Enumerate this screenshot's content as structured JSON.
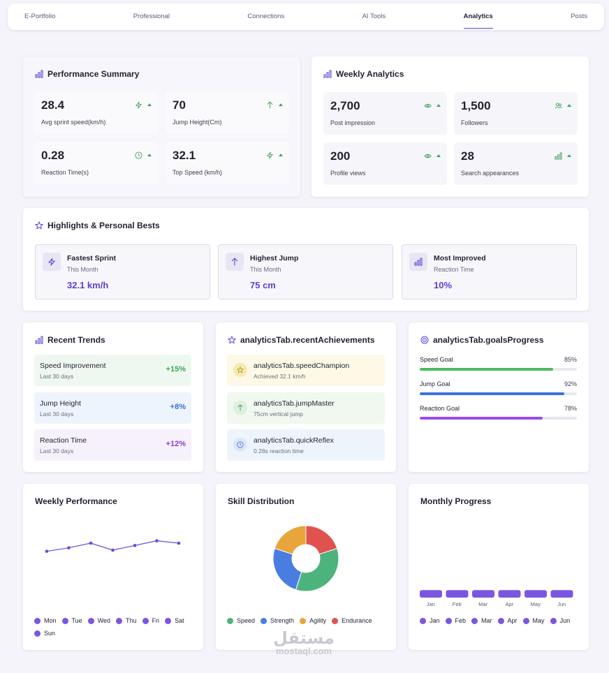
{
  "nav": {
    "tabs": [
      "E-Portfolio",
      "Professional",
      "Connections",
      "AI Tools",
      "Analytics",
      "Posts"
    ],
    "active": "Analytics"
  },
  "performance": {
    "title": "Performance Summary",
    "stats": [
      {
        "value": "28.4",
        "label": "Avg sprint speed(km/h)",
        "icon": "bolt-icon"
      },
      {
        "value": "70",
        "label": "Jump Height(Cm)",
        "icon": "arrow-up-icon"
      },
      {
        "value": "0.28",
        "label": "Reaction Time(s)",
        "icon": "clock-icon"
      },
      {
        "value": "32.1",
        "label": "Top Speed (km/h)",
        "icon": "bolt-icon"
      }
    ]
  },
  "weekly": {
    "title": "Weekly Analytics",
    "stats": [
      {
        "value": "2,700",
        "label": "Post impression",
        "icon": "eye-icon"
      },
      {
        "value": "1,500",
        "label": "Followers",
        "icon": "users-icon"
      },
      {
        "value": "200",
        "label": "Profile views",
        "icon": "eye-icon"
      },
      {
        "value": "28",
        "label": "Search appearances",
        "icon": "bar-chart-icon"
      }
    ]
  },
  "highlights": {
    "title": "Highlights & Personal Bests",
    "items": [
      {
        "title": "Fastest Sprint",
        "sub": "This Month",
        "value": "32.1 km/h",
        "icon": "bolt-icon"
      },
      {
        "title": "Highest Jump",
        "sub": "This Month",
        "value": "75 cm",
        "icon": "arrow-up-icon"
      },
      {
        "title": "Most Improved",
        "sub": "Reaction Time",
        "value": "10%",
        "icon": "bar-chart-icon"
      }
    ]
  },
  "trends": {
    "title": "Recent Trends",
    "items": [
      {
        "title": "Speed Improvement",
        "sub": "Last 30 days",
        "value": "+15%",
        "bg": "#eff8f0",
        "color": "#3fa55a"
      },
      {
        "title": "Jump Height",
        "sub": "Last 30 days",
        "value": "+8%",
        "bg": "#eef4fd",
        "color": "#3b6fd6"
      },
      {
        "title": "Reaction Time",
        "sub": "Last 30 days",
        "value": "+12%",
        "bg": "#f6f1fb",
        "color": "#8a3fd6"
      }
    ]
  },
  "achievements": {
    "title": "analyticsTab.recentAchievements",
    "items": [
      {
        "title": "analyticsTab.speedChampion",
        "sub": "Achieved 32.1 km/h",
        "bg": "#fdf9e6",
        "icon": "star-icon"
      },
      {
        "title": "analyticsTab.jumpMaster",
        "sub": "75cm vertical jump",
        "bg": "#f0f8f0",
        "icon": "arrow-up-icon"
      },
      {
        "title": "analyticsTab.quickReflex",
        "sub": "0.28s reaction time",
        "bg": "#eef4fc",
        "icon": "clock-icon"
      }
    ]
  },
  "goals": {
    "title": "analyticsTab.goalsProgress",
    "items": [
      {
        "name": "Speed Goal",
        "pct_label": "85%",
        "pct": 85,
        "color": "#4cbb5f"
      },
      {
        "name": "Jump Goal",
        "pct_label": "92%",
        "pct": 92,
        "color": "#3d6fe0"
      },
      {
        "name": "Reaction Goal",
        "pct_label": "78%",
        "pct": 78,
        "color": "#9a4be8"
      }
    ]
  },
  "chart_data": [
    {
      "type": "line",
      "title": "Weekly Performance",
      "categories": [
        "Mon",
        "Tue",
        "Wed",
        "Thu",
        "Fri",
        "Sat",
        "Sun"
      ],
      "values": [
        75,
        78,
        82,
        76,
        80,
        84,
        82
      ],
      "ylim": [
        40,
        100
      ],
      "color": "#6a48d8",
      "legend_color": "#7a56e0"
    },
    {
      "type": "pie",
      "title": "Skill Distribution",
      "categories": [
        "Speed",
        "Strength",
        "Agility",
        "Endurance"
      ],
      "values": [
        35,
        25,
        20,
        20
      ],
      "colors": [
        "#4db37d",
        "#4a7de0",
        "#e8a53b",
        "#e0524f"
      ]
    },
    {
      "type": "bar",
      "title": "Monthly Progress",
      "categories": [
        "Jan",
        "Feb",
        "Mar",
        "Apr",
        "May",
        "Jun"
      ],
      "values": [
        2,
        2,
        2,
        2,
        2,
        2
      ],
      "ylim": [
        0,
        20
      ],
      "color": "#7a56e0"
    }
  ],
  "watermark": {
    "arabic": "مستقل",
    "latin": "mostaql.com"
  }
}
